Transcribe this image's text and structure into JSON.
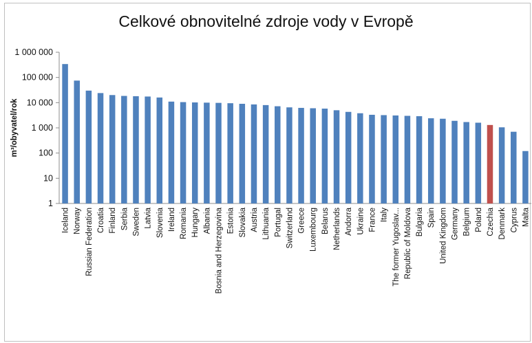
{
  "chart_data": {
    "type": "bar",
    "title": "Celkové obnovitelné zdroje vody v Evropě",
    "ylabel": "m³/obyvatel/rok",
    "xlabel": "",
    "yscale": "log",
    "ylim": [
      1,
      1000000
    ],
    "ytick_values": [
      1,
      10,
      100,
      1000,
      10000,
      100000,
      1000000
    ],
    "ytick_labels": [
      "1",
      "10",
      "100",
      "1 000",
      "10 000",
      "100 000",
      "1 000 000"
    ],
    "grid": false,
    "categories": [
      "Iceland",
      "Norway",
      "Russian Federation",
      "Croatia",
      "Finland",
      "Serbia",
      "Sweden",
      "Latvia",
      "Slovenia",
      "Ireland",
      "Romania",
      "Hungary",
      "Albania",
      "Bosnia and Herzegovina",
      "Estonia",
      "Slovakia",
      "Austria",
      "Lithuania",
      "Portugal",
      "Switzerland",
      "Greece",
      "Luxembourg",
      "Belarus",
      "Netherlands",
      "Andorra",
      "Ukraine",
      "France",
      "Italy",
      "The former Yugoslav...",
      "Republic of Moldova",
      "Bulgaria",
      "Spain",
      "United Kingdom",
      "Germany",
      "Belgium",
      "Poland",
      "Czechia",
      "Denmark",
      "Cyprus",
      "Malta"
    ],
    "values": [
      340000,
      75000,
      30000,
      24000,
      20000,
      18500,
      18000,
      17500,
      16000,
      11000,
      10500,
      10200,
      10000,
      9800,
      9500,
      9000,
      8500,
      8000,
      7200,
      6500,
      6200,
      6000,
      5800,
      5000,
      4300,
      3800,
      3300,
      3200,
      3100,
      3000,
      2900,
      2400,
      2300,
      1900,
      1700,
      1600,
      1300,
      1050,
      700,
      120
    ],
    "colors": {
      "default": "#4f81bd",
      "highlight": "#c0504d"
    },
    "highlight_category": "Czechia"
  }
}
